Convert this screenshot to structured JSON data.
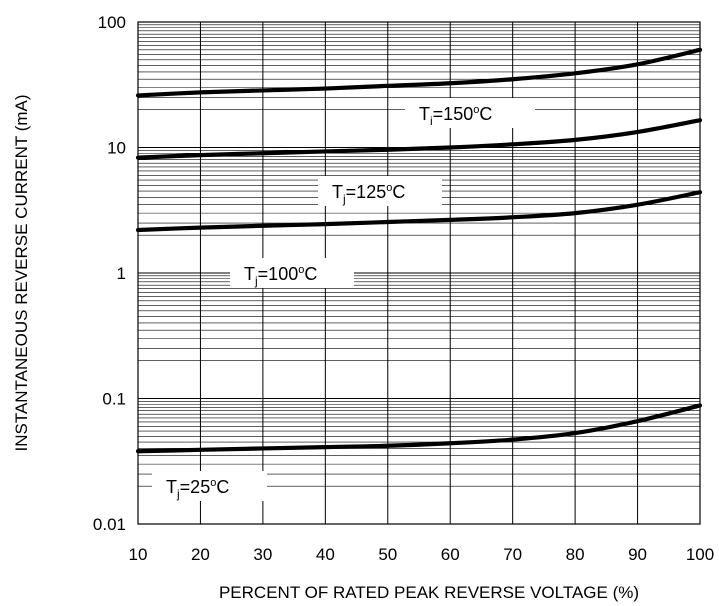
{
  "chart_data": {
    "type": "line",
    "title": "",
    "xlabel": "PERCENT OF RATED PEAK REVERSE VOLTAGE (%)",
    "ylabel": "INSTANTANEOUS REVERSE CURRENT (mA)",
    "xlim": [
      10,
      100
    ],
    "ylim": [
      0.01,
      100
    ],
    "yscale": "log",
    "grid": true,
    "x_ticks": [
      "10",
      "20",
      "30",
      "40",
      "50",
      "60",
      "70",
      "80",
      "90",
      "100"
    ],
    "y_ticks": [
      "100",
      "10",
      "1",
      "0.1",
      "0.01"
    ],
    "x": [
      10,
      20,
      30,
      40,
      50,
      60,
      70,
      80,
      90,
      100
    ],
    "series": [
      {
        "label": {
          "base": "T",
          "sub": "i",
          "rest": "=150",
          "sup": "o",
          "unit": "C"
        },
        "values": [
          26,
          27.5,
          28.5,
          29.5,
          31,
          32.5,
          35,
          39,
          46,
          60
        ]
      },
      {
        "label": {
          "base": "T",
          "sub": "j",
          "rest": "=125",
          "sup": "o",
          "unit": "C"
        },
        "values": [
          8.3,
          8.7,
          9.0,
          9.3,
          9.6,
          10.0,
          10.6,
          11.5,
          13.3,
          16.5
        ]
      },
      {
        "label": {
          "base": "T",
          "sub": "j",
          "rest": "=100",
          "sup": "o",
          "unit": "C"
        },
        "values": [
          2.2,
          2.3,
          2.38,
          2.45,
          2.55,
          2.65,
          2.78,
          3.0,
          3.5,
          4.4
        ]
      },
      {
        "label": {
          "base": "T",
          "sub": "j",
          "rest": "=25",
          "sup": "o",
          "unit": "C"
        },
        "values": [
          0.038,
          0.039,
          0.04,
          0.041,
          0.042,
          0.044,
          0.047,
          0.053,
          0.066,
          0.088
        ]
      }
    ]
  }
}
